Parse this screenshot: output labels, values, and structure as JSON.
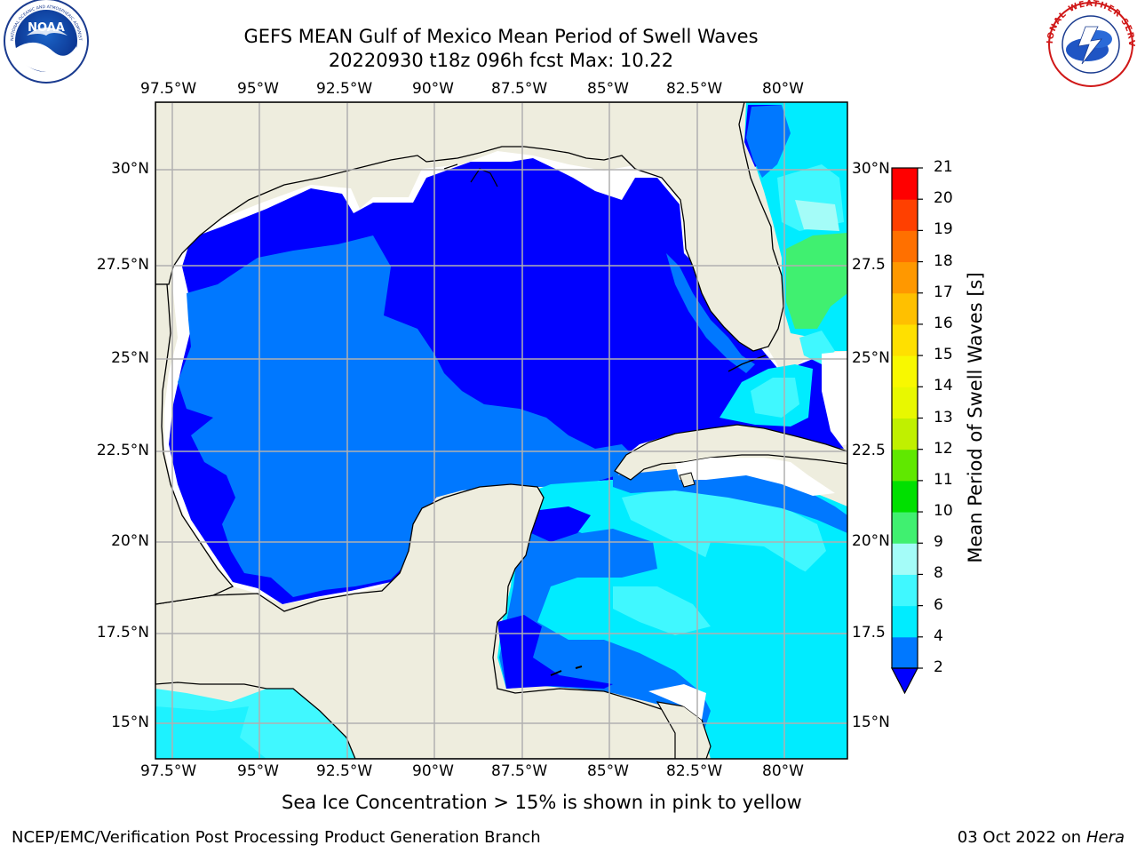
{
  "header": {
    "title_line1": "GEFS MEAN Gulf of Mexico Mean Period of Swell Waves",
    "title_line2": "20220930 t18z 096h fcst   Max: 10.22",
    "left_logo": "noaa-logo",
    "left_logo_text": "NOAA",
    "left_logo_ring_text": "NATIONAL OCEANIC AND ATMOSPHERIC ADMINISTRATION · U.S. DEPARTMENT OF COMMERCE",
    "right_logo": "national-weather-service-logo",
    "right_logo_ring_text": "NATIONAL WEATHER SERVICE"
  },
  "map": {
    "lon_ticks": [
      "97.5°W",
      "95°W",
      "92.5°W",
      "90°W",
      "87.5°W",
      "85°W",
      "82.5°W",
      "80°W"
    ],
    "lat_ticks_left": [
      "30°N",
      "27.5°N",
      "25°N",
      "22.5°N",
      "20°N",
      "17.5°N",
      "15°N"
    ],
    "lat_ticks_right": [
      "30°N",
      "27.5",
      "25°N",
      "22.5",
      "20°N",
      "17.5",
      "15°N"
    ],
    "extent": {
      "lon_min": -98,
      "lon_max": -78.2,
      "lat_min": 14.0,
      "lat_max": 31.8
    },
    "colors": {
      "land": "#eeedde",
      "coast": "#000000",
      "grid": "#b0b0b0",
      "no_data": "#ffffff"
    }
  },
  "colorbar": {
    "label": "Mean Period of Swell Waves [s]",
    "tick_labels": [
      "2",
      "4",
      "6",
      "8",
      "9",
      "10",
      "11",
      "12",
      "13",
      "14",
      "15",
      "16",
      "17",
      "18",
      "19",
      "20",
      "21"
    ],
    "extend": "min",
    "bins": [
      {
        "from": 2,
        "to": 4,
        "color": "#0078ff"
      },
      {
        "from": 4,
        "to": 6,
        "color": "#00ecff"
      },
      {
        "from": 6,
        "to": 8,
        "color": "#40f8ff"
      },
      {
        "from": 8,
        "to": 9,
        "color": "#a4fcf8"
      },
      {
        "from": 9,
        "to": 10,
        "color": "#40f070"
      },
      {
        "from": 10,
        "to": 11,
        "color": "#00e000"
      },
      {
        "from": 11,
        "to": 12,
        "color": "#60e800"
      },
      {
        "from": 12,
        "to": 13,
        "color": "#c0f000"
      },
      {
        "from": 13,
        "to": 14,
        "color": "#e8f800"
      },
      {
        "from": 14,
        "to": 15,
        "color": "#f8f800"
      },
      {
        "from": 15,
        "to": 16,
        "color": "#ffe000"
      },
      {
        "from": 16,
        "to": 17,
        "color": "#ffc000"
      },
      {
        "from": 17,
        "to": 18,
        "color": "#ff9800"
      },
      {
        "from": 18,
        "to": 19,
        "color": "#ff7000"
      },
      {
        "from": 19,
        "to": 20,
        "color": "#ff4000"
      },
      {
        "from": 20,
        "to": 21,
        "color": "#ff0000"
      }
    ],
    "under_color": "#0000ff"
  },
  "notes": {
    "sea_ice_note": "Sea Ice Concentration > 15% is shown in pink to yellow"
  },
  "footer": {
    "left": "NCEP/EMC/Verification Post Processing Product Generation Branch",
    "date": "03 Oct 2022 on ",
    "host": "Hera"
  }
}
